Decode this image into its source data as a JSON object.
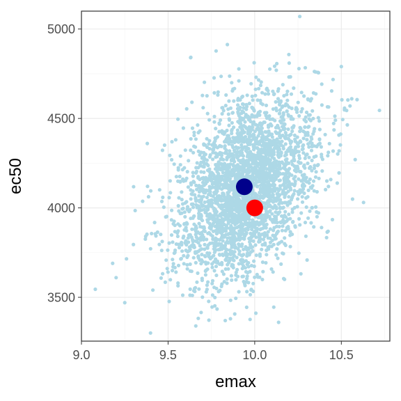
{
  "chart_data": {
    "type": "scatter",
    "xlabel": "emax",
    "ylabel": "ec50",
    "xlim": [
      9.0,
      10.78
    ],
    "ylim": [
      3255,
      5100
    ],
    "x_ticks": [
      9.0,
      9.5,
      10.0,
      10.5
    ],
    "x_tick_labels": [
      "9.0",
      "9.5",
      "10.0",
      "10.5"
    ],
    "y_ticks": [
      3500,
      4000,
      4500,
      5000
    ],
    "y_tick_labels": [
      "3500",
      "4000",
      "4500",
      "5000"
    ],
    "grid": true,
    "legend": "none",
    "series": [
      {
        "role": "samples",
        "color": "#add8e6",
        "approx_count": 3000,
        "distribution": {
          "center": {
            "x": 9.95,
            "y": 4110
          },
          "sd": {
            "x": 0.2,
            "y": 250
          },
          "correlation": 0.35
        },
        "outlier_points": [
          {
            "x": 9.08,
            "y": 3545
          },
          {
            "x": 9.25,
            "y": 3470
          },
          {
            "x": 9.18,
            "y": 3690
          },
          {
            "x": 9.2,
            "y": 3610
          },
          {
            "x": 9.26,
            "y": 3715
          },
          {
            "x": 9.3,
            "y": 3795
          },
          {
            "x": 9.31,
            "y": 3985
          },
          {
            "x": 9.38,
            "y": 4360
          },
          {
            "x": 9.4,
            "y": 4095
          },
          {
            "x": 9.63,
            "y": 4840
          },
          {
            "x": 9.66,
            "y": 3340
          },
          {
            "x": 10.26,
            "y": 5070
          },
          {
            "x": 10.42,
            "y": 4565
          },
          {
            "x": 10.5,
            "y": 4790
          },
          {
            "x": 10.55,
            "y": 4570
          },
          {
            "x": 10.56,
            "y": 4610
          },
          {
            "x": 10.58,
            "y": 4270
          },
          {
            "x": 10.72,
            "y": 4545
          },
          {
            "x": 10.11,
            "y": 3445
          },
          {
            "x": 9.83,
            "y": 3370
          },
          {
            "x": 9.86,
            "y": 3380
          }
        ]
      },
      {
        "role": "highlight-1",
        "color": "#00008b",
        "x": 9.94,
        "y": 4118
      },
      {
        "role": "highlight-2",
        "color": "#ff0000",
        "x": 10.0,
        "y": 4000
      }
    ]
  }
}
